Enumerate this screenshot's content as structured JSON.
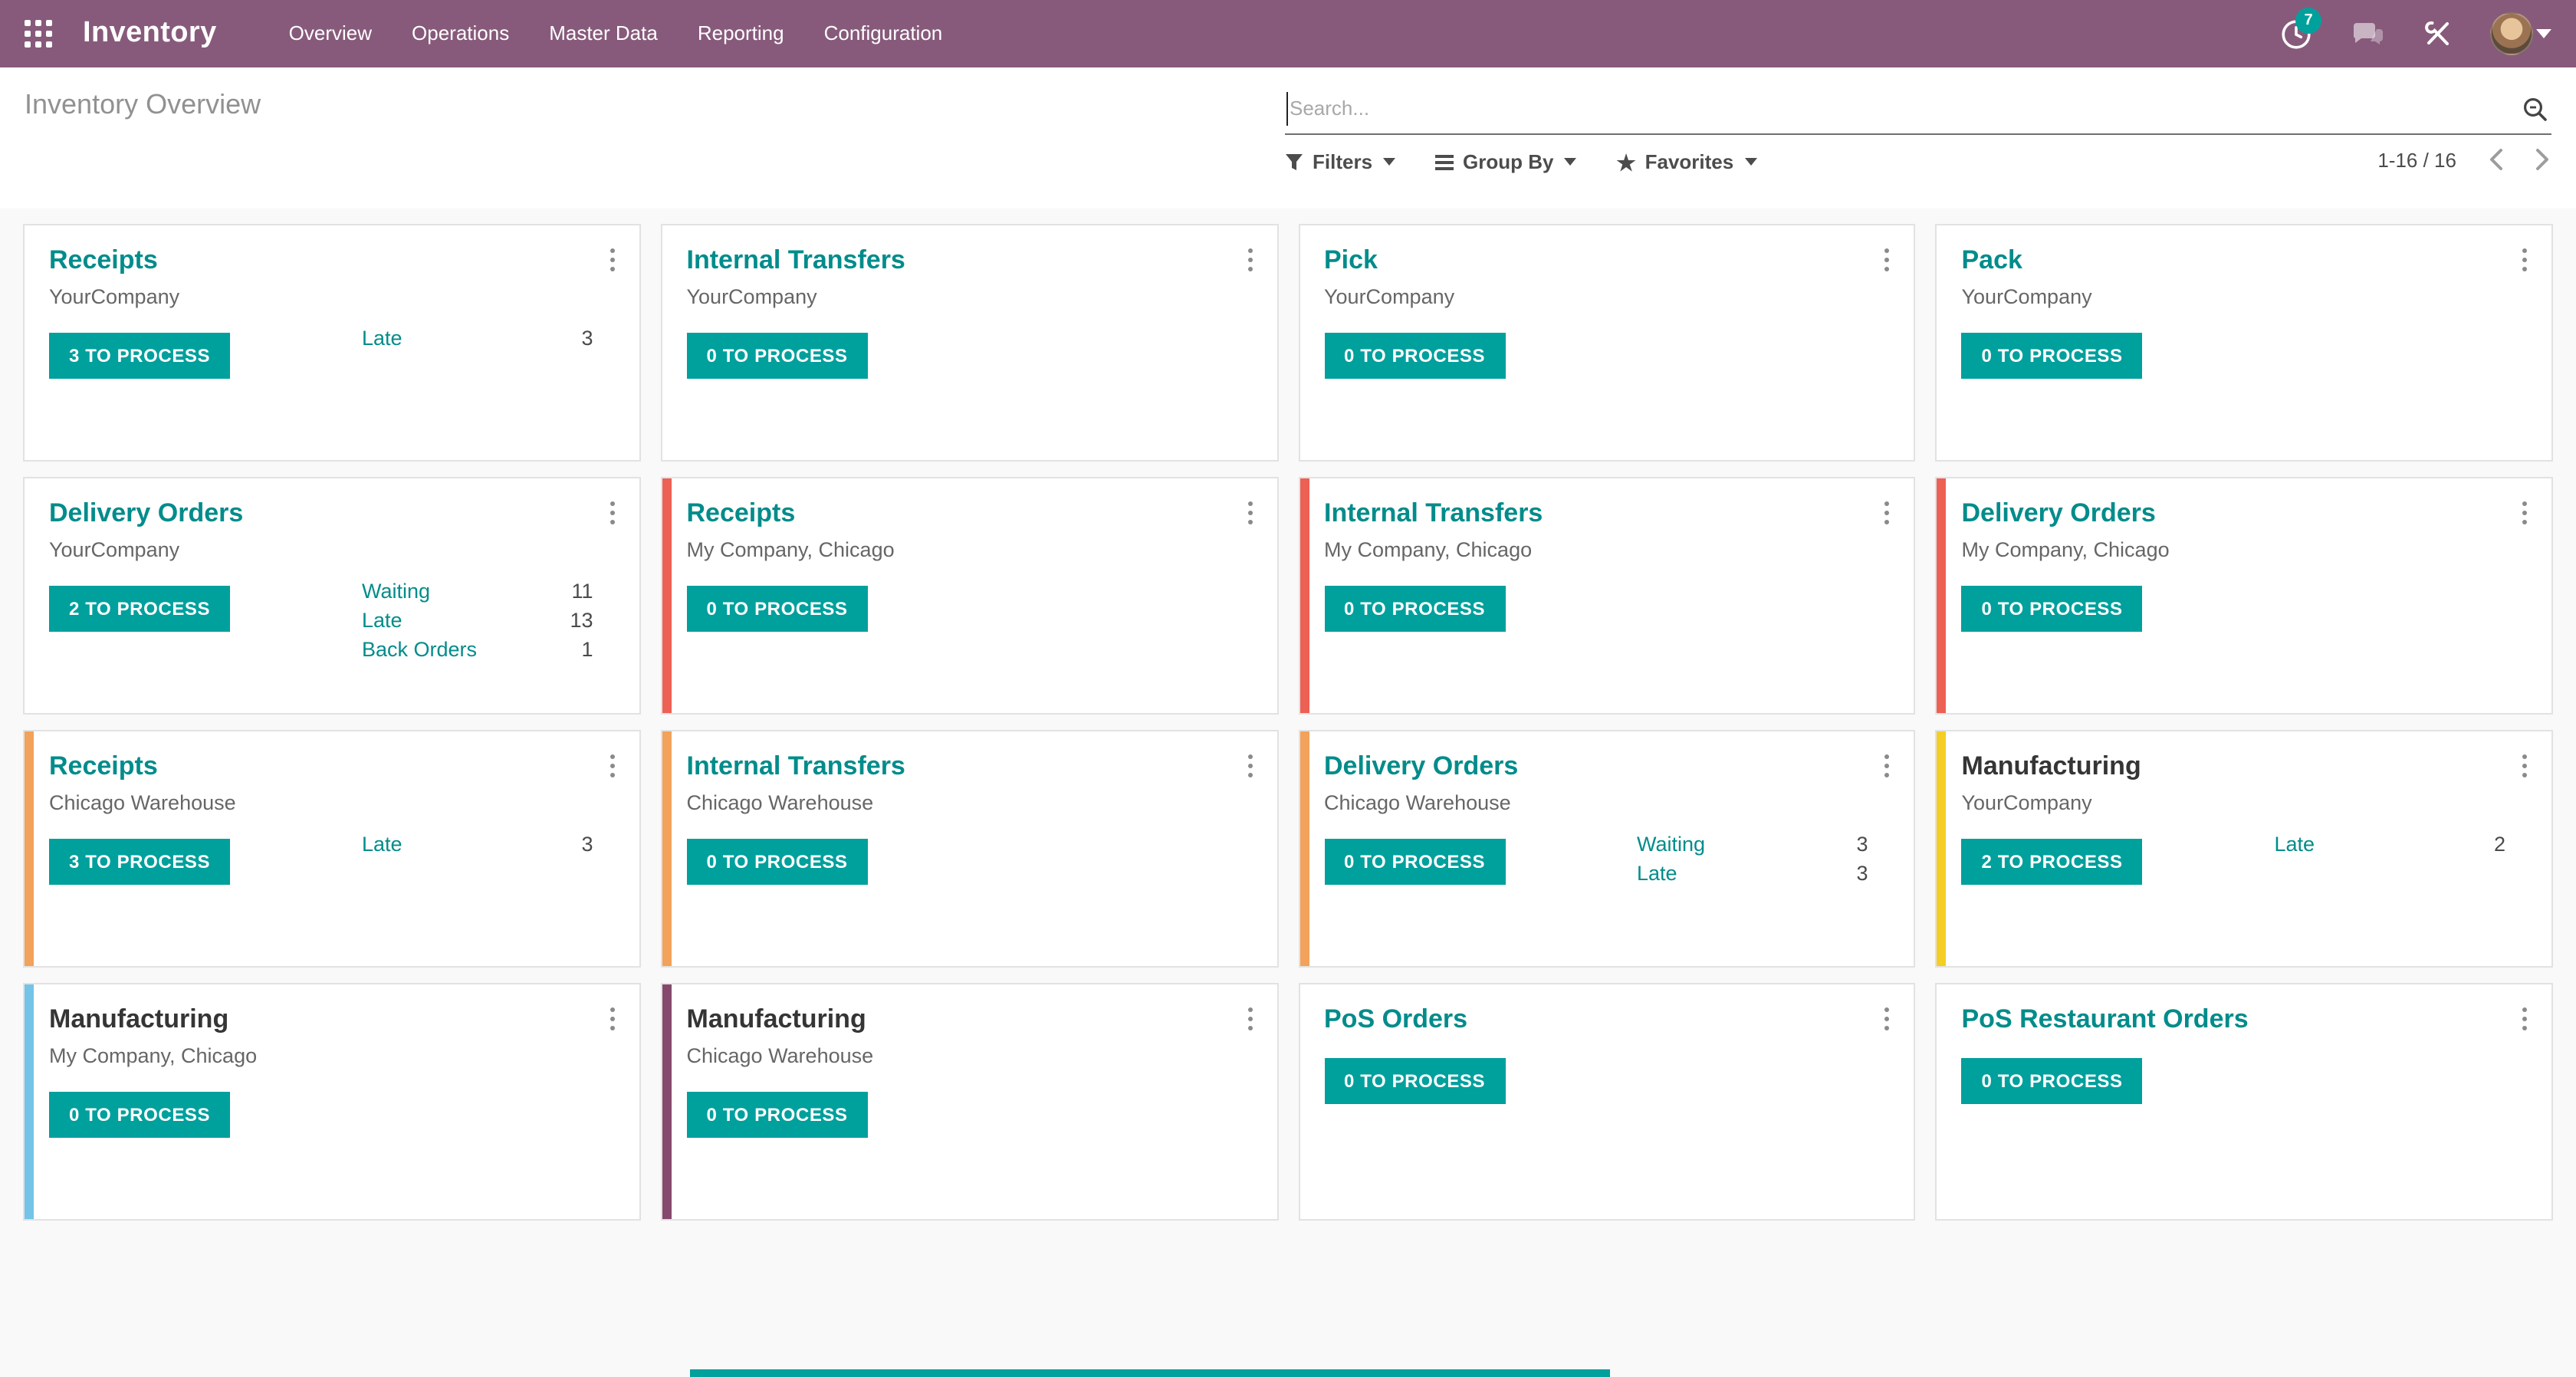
{
  "navbar": {
    "app_name": "Inventory",
    "menu_items": [
      "Overview",
      "Operations",
      "Master Data",
      "Reporting",
      "Configuration"
    ],
    "activity_badge_count": "7"
  },
  "control_panel": {
    "title": "Inventory Overview",
    "search_placeholder": "Search...",
    "filters_label": "Filters",
    "group_by_label": "Group By",
    "favorites_label": "Favorites",
    "pager_text": "1-16 / 16"
  },
  "icons": {
    "apps_grid": "3x3-grid",
    "activity_clock": "clock",
    "messages": "chat-bubbles",
    "tools": "wrench-screwdriver",
    "user_menu_caret": "caret-down",
    "search": "magnifier",
    "filters": "funnel",
    "group_by": "hamburger-lines",
    "favorites": "star",
    "pager_prev": "chevron-left",
    "pager_next": "chevron-right",
    "card_menu": "kebab-vertical-dots"
  },
  "colors": {
    "navbar_bg": "#875a7b",
    "primary_teal": "#00a09d",
    "link_teal": "#008c8b",
    "accent_red": "#ed6054",
    "accent_orange": "#f2a25a",
    "accent_yellow": "#f5ce23",
    "accent_blue": "#74c4e8",
    "accent_purple": "#85496d"
  },
  "cards": [
    {
      "title": "Receipts",
      "subtitle": "YourCompany",
      "button": "3 TO PROCESS",
      "stats": [
        {
          "label": "Late",
          "value": "3"
        }
      ],
      "accent": null,
      "title_style": "teal"
    },
    {
      "title": "Internal Transfers",
      "subtitle": "YourCompany",
      "button": "0 TO PROCESS",
      "stats": [],
      "accent": null,
      "title_style": "teal"
    },
    {
      "title": "Pick",
      "subtitle": "YourCompany",
      "button": "0 TO PROCESS",
      "stats": [],
      "accent": null,
      "title_style": "teal"
    },
    {
      "title": "Pack",
      "subtitle": "YourCompany",
      "button": "0 TO PROCESS",
      "stats": [],
      "accent": null,
      "title_style": "teal"
    },
    {
      "title": "Delivery Orders",
      "subtitle": "YourCompany",
      "button": "2 TO PROCESS",
      "stats": [
        {
          "label": "Waiting",
          "value": "11"
        },
        {
          "label": "Late",
          "value": "13"
        },
        {
          "label": "Back Orders",
          "value": "1"
        }
      ],
      "accent": null,
      "title_style": "teal"
    },
    {
      "title": "Receipts",
      "subtitle": "My Company, Chicago",
      "button": "0 TO PROCESS",
      "stats": [],
      "accent": "#ed6054",
      "title_style": "teal"
    },
    {
      "title": "Internal Transfers",
      "subtitle": "My Company, Chicago",
      "button": "0 TO PROCESS",
      "stats": [],
      "accent": "#ed6054",
      "title_style": "teal"
    },
    {
      "title": "Delivery Orders",
      "subtitle": "My Company, Chicago",
      "button": "0 TO PROCESS",
      "stats": [],
      "accent": "#ed6054",
      "title_style": "teal"
    },
    {
      "title": "Receipts",
      "subtitle": "Chicago Warehouse",
      "button": "3 TO PROCESS",
      "stats": [
        {
          "label": "Late",
          "value": "3"
        }
      ],
      "accent": "#f2a25a",
      "title_style": "teal"
    },
    {
      "title": "Internal Transfers",
      "subtitle": "Chicago Warehouse",
      "button": "0 TO PROCESS",
      "stats": [],
      "accent": "#f2a25a",
      "title_style": "teal"
    },
    {
      "title": "Delivery Orders",
      "subtitle": "Chicago Warehouse",
      "button": "0 TO PROCESS",
      "stats": [
        {
          "label": "Waiting",
          "value": "3"
        },
        {
          "label": "Late",
          "value": "3"
        }
      ],
      "accent": "#f2a25a",
      "title_style": "teal"
    },
    {
      "title": "Manufacturing",
      "subtitle": "YourCompany",
      "button": "2 TO PROCESS",
      "stats": [
        {
          "label": "Late",
          "value": "2"
        }
      ],
      "accent": "#f5ce23",
      "title_style": "dark"
    },
    {
      "title": "Manufacturing",
      "subtitle": "My Company, Chicago",
      "button": "0 TO PROCESS",
      "stats": [],
      "accent": "#74c4e8",
      "title_style": "dark"
    },
    {
      "title": "Manufacturing",
      "subtitle": "Chicago Warehouse",
      "button": "0 TO PROCESS",
      "stats": [],
      "accent": "#85496d",
      "title_style": "dark"
    },
    {
      "title": "PoS Orders",
      "subtitle": null,
      "button": "0 TO PROCESS",
      "stats": [],
      "accent": null,
      "title_style": "teal"
    },
    {
      "title": "PoS Restaurant Orders",
      "subtitle": null,
      "button": "0 TO PROCESS",
      "stats": [],
      "accent": null,
      "title_style": "teal"
    }
  ]
}
